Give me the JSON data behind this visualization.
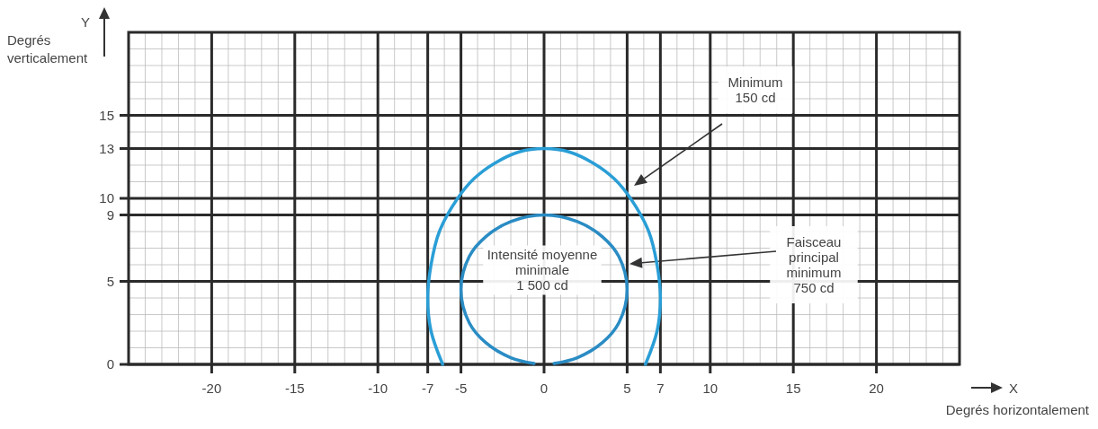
{
  "chart_data": {
    "type": "line",
    "xlabel": "X Degrés horizontalement",
    "ylabel": "Y Degrés verticalement",
    "xlim": [
      -25,
      25
    ],
    "ylim": [
      0,
      20
    ],
    "xticks": [
      -20,
      -15,
      -10,
      -7,
      -5,
      0,
      5,
      7,
      10,
      15,
      20
    ],
    "yticks": [
      0,
      5,
      9,
      10,
      13,
      15
    ],
    "grid": true,
    "marker": "none",
    "line_style": "solid",
    "series": [
      {
        "color": "#2a9ed6",
        "x": [
          -6.1,
          -6.8,
          -7,
          -6.8,
          -6.3,
          -5.2,
          -4.2,
          -3,
          -1.5,
          0,
          1.5,
          3,
          4.2,
          5.2,
          6.3,
          6.8,
          7,
          6.8,
          6.1
        ],
        "values": [
          0,
          2,
          4,
          6,
          8,
          10,
          11.2,
          12.1,
          12.8,
          13,
          12.8,
          12.1,
          11.2,
          10,
          8,
          6,
          4,
          2,
          0
        ]
      },
      {
        "color": "#2a8cc4",
        "x": [
          -0.6,
          -2,
          -3.5,
          -4.5,
          -5,
          -4.5,
          -3.5,
          -2,
          0,
          2,
          3.5,
          4.5,
          5,
          4.5,
          3.5,
          2,
          0.6
        ],
        "values": [
          0.05,
          0.4,
          1.3,
          2.5,
          4.5,
          6.5,
          7.7,
          8.6,
          9,
          8.6,
          7.7,
          6.5,
          4.5,
          2.5,
          1.3,
          0.4,
          0.05
        ]
      }
    ],
    "annotations": [
      "Minimum\n150 cd",
      "Faisceau\nprincipal\nminimum\n750 cd",
      "Intensité moyenne\nminimale\n1 500 cd"
    ]
  }
}
